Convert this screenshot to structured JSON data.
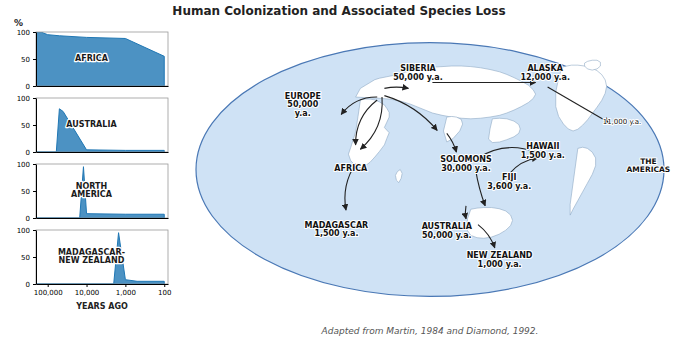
{
  "chart_data": [
    {
      "type": "area",
      "title": "Human Colonization and Associated Species Loss",
      "ylabel": "%",
      "log": "x",
      "x": [
        200000,
        150000,
        100000,
        50000,
        10000,
        1000,
        100
      ],
      "series": [
        {
          "name": "AFRICA",
          "values": [
            100,
            100,
            95,
            93,
            90,
            88,
            55
          ]
        }
      ],
      "xlim": [
        200000,
        80
      ],
      "ylim": [
        0,
        100
      ],
      "yticks": [
        0,
        50,
        100
      ],
      "tick_labels": "y"
    },
    {
      "type": "area",
      "log": "x",
      "x": [
        200000,
        60000,
        50000,
        40000,
        10000,
        1000,
        100
      ],
      "series": [
        {
          "name": "AUSTRALIA",
          "values": [
            0,
            0,
            80,
            75,
            4,
            3,
            3
          ]
        }
      ],
      "xlim": [
        200000,
        80
      ],
      "ylim": [
        0,
        100
      ],
      "yticks": [
        0,
        50,
        100
      ],
      "tick_labels": "y"
    },
    {
      "type": "area",
      "log": "x",
      "x": [
        200000,
        15000,
        12000,
        10000,
        1000,
        100
      ],
      "series": [
        {
          "name": "NORTH\nAMERICA",
          "values": [
            0,
            0,
            95,
            8,
            7,
            7
          ]
        }
      ],
      "xlim": [
        200000,
        80
      ],
      "ylim": [
        0,
        100
      ],
      "yticks": [
        0,
        50,
        100
      ],
      "tick_labels": "y"
    },
    {
      "type": "area",
      "xlabel": "YEARS AGO",
      "log": "x",
      "x": [
        200000,
        2000,
        1500,
        1000,
        500,
        100
      ],
      "series": [
        {
          "name": "MADAGASCAR-\nNEW ZEALAND",
          "values": [
            0,
            0,
            95,
            8,
            5,
            5
          ]
        }
      ],
      "xlim": [
        200000,
        80
      ],
      "ylim": [
        0,
        100
      ],
      "yticks": [
        0,
        50,
        100
      ],
      "xticks": [
        {
          "value": 100000,
          "label": "100,000"
        },
        {
          "value": 10000,
          "label": "10,000"
        },
        {
          "value": 1000,
          "label": "1,000"
        },
        100
      ]
    },
    {
      "type": "map",
      "annotations": [
        "SIBERIA\n50,000 y.a.",
        "ALASKA\n12,000 y.a.",
        "EUROPE\n50,000\ny.a.",
        "HAWAII\n1,500 y.a.",
        "THE\nAMERICAS",
        "11,000 y.a.",
        "AFRICA",
        "SOLOMONS\n30,000 y.a.",
        "FIJI\n3,600 y.a.",
        "MADAGASCAR\n1,500 y.a.",
        "AUSTRALIA\n50,000 y.a.",
        "NEW ZEALAND\n1,000 y.a."
      ],
      "source": "Adapted from Martin, 1984 and Diamond, 1992."
    }
  ]
}
